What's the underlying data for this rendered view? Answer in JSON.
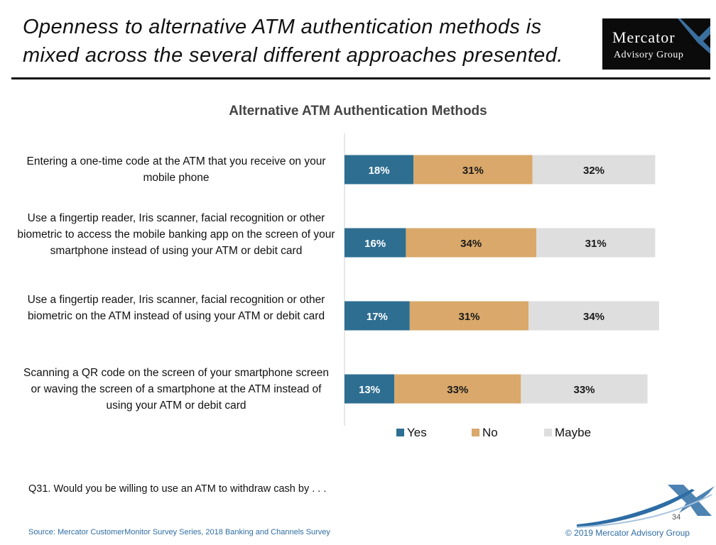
{
  "slide": {
    "title": "Openness to alternative ATM authentication methods is mixed across the several different approaches presented.",
    "question": "Q31. Would you be willing to use an ATM to withdraw cash by . . .",
    "source": "Source: Mercator CustomerMonitor Survey Series, 2018 Banking and Channels Survey",
    "copyright": "© 2019 Mercator Advisory Group",
    "page_number": "34"
  },
  "logo": {
    "line1": "Mercator",
    "line2": "Advisory Group"
  },
  "chart_data": {
    "type": "bar",
    "orientation": "horizontal",
    "stacked": true,
    "title": "Alternative ATM Authentication Methods",
    "xlabel": "",
    "ylabel": "",
    "value_unit": "%",
    "xlim": [
      0,
      100
    ],
    "grid": false,
    "legend_position": "bottom",
    "categories": [
      "Entering a one-time code at the ATM that you receive on your mobile phone",
      "Use a fingertip reader, Iris scanner, facial recognition or other biometric to access the mobile banking app on the screen of your smartphone instead of using your ATM or debit card",
      "Use a fingertip reader, Iris scanner, facial recognition or other biometric on the ATM instead of using your ATM or debit card",
      "Scanning a QR code on the screen of your smartphone screen or waving the screen of a smartphone at the ATM instead of using your ATM or debit card"
    ],
    "series": [
      {
        "name": "Yes",
        "color": "#2e6e91",
        "label_color": "#ffffff",
        "values": [
          18,
          16,
          17,
          13
        ]
      },
      {
        "name": "No",
        "color": "#d9a86a",
        "label_color": "#1a1a1a",
        "values": [
          31,
          34,
          31,
          33
        ]
      },
      {
        "name": "Maybe",
        "color": "#dedede",
        "label_color": "#1a1a1a",
        "values": [
          32,
          31,
          34,
          33
        ]
      }
    ]
  }
}
